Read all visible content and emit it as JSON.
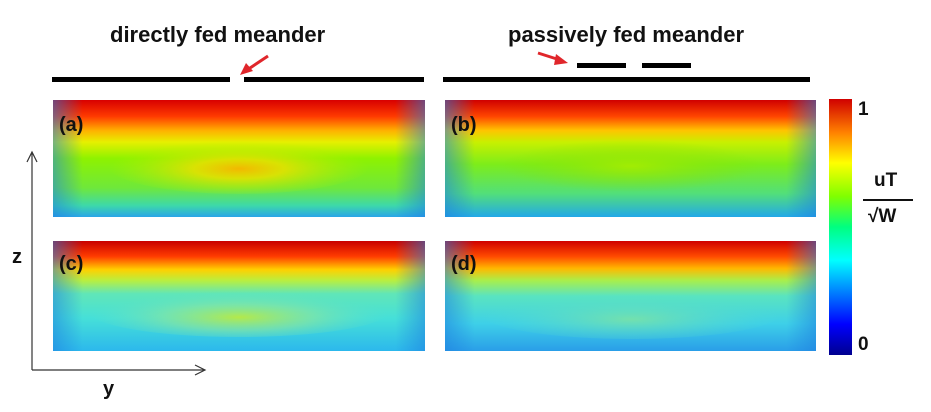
{
  "titles": {
    "left": "directly fed meander",
    "right": "passively fed meander"
  },
  "panels": [
    {
      "label": "(a)"
    },
    {
      "label": "(b)"
    },
    {
      "label": "(c)"
    },
    {
      "label": "(d)"
    }
  ],
  "axes": {
    "vertical_label": "z",
    "horizontal_label": "y"
  },
  "colorbar": {
    "max_label": "1",
    "min_label": "0",
    "unit_numerator": "uT",
    "unit_denominator": "√W",
    "colormap": "jet",
    "range": [
      0,
      1
    ]
  },
  "colors": {
    "arrow": "#e0262b",
    "line": "#000000"
  }
}
